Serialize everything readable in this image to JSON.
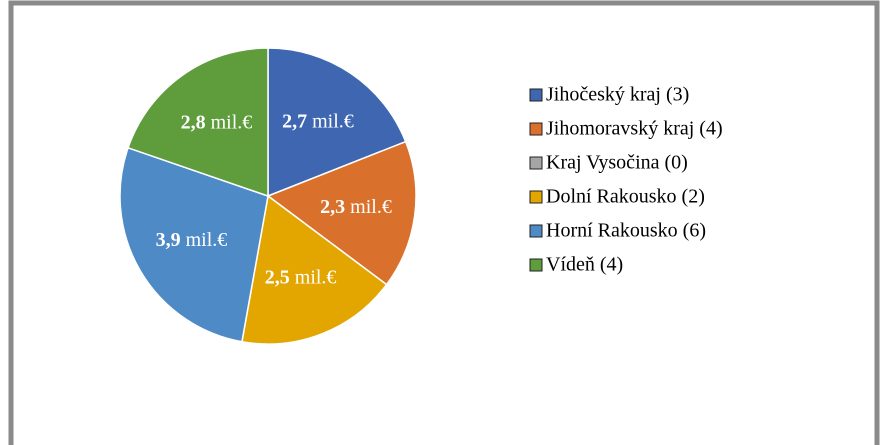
{
  "chart_data": {
    "type": "pie",
    "categories": [
      "Jihočeský kraj (3)",
      "Jihomoravský kraj (4)",
      "Kraj Vysočina (0)",
      "Dolní Rakousko (2)",
      "Horní Rakousko (6)",
      "Vídeň (4)"
    ],
    "values": [
      2.7,
      2.3,
      0,
      2.5,
      3.9,
      2.8
    ],
    "value_labels": [
      "2,7 mil.€",
      "2,3 mil.€",
      null,
      "2,5 mil.€",
      "3,9 mil.€",
      "2,8 mil.€"
    ],
    "colors": [
      "#3f67b1",
      "#d9702b",
      "#a5a5a5",
      "#e3a600",
      "#4e8ac6",
      "#5e9c3c"
    ],
    "legend": "right"
  }
}
